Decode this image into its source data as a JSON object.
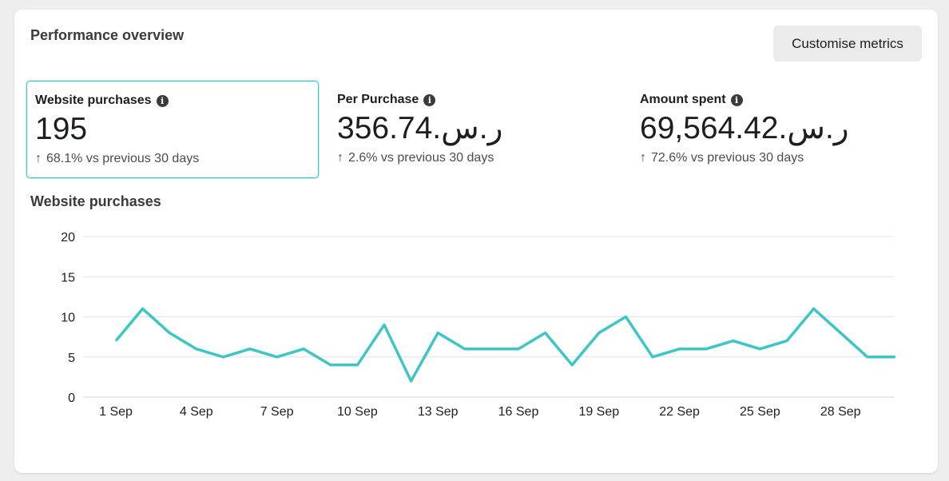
{
  "header": {
    "title": "Performance overview",
    "customise_label": "Customise metrics"
  },
  "metrics": [
    {
      "label": "Website purchases",
      "value": "195",
      "change": "68.1% vs previous 30 days",
      "selected": true
    },
    {
      "label": "Per Purchase",
      "value": "356.74.ر.س",
      "change": "2.6% vs previous 30 days",
      "selected": false
    },
    {
      "label": "Amount spent",
      "value": "69,564.42.ر.س",
      "change": "72.6% vs previous 30 days",
      "selected": false
    }
  ],
  "icons": {
    "info": "info-icon",
    "trend": "arrow-up-icon"
  },
  "colors": {
    "line": "#3ec6c6",
    "selected_border": "#3ec6c6"
  },
  "chart_data": {
    "type": "line",
    "title": "Website purchases",
    "x": [
      "1 Sep",
      "2 Sep",
      "3 Sep",
      "4 Sep",
      "5 Sep",
      "6 Sep",
      "7 Sep",
      "8 Sep",
      "9 Sep",
      "10 Sep",
      "11 Sep",
      "12 Sep",
      "13 Sep",
      "14 Sep",
      "15 Sep",
      "16 Sep",
      "17 Sep",
      "18 Sep",
      "19 Sep",
      "20 Sep",
      "21 Sep",
      "22 Sep",
      "23 Sep",
      "24 Sep",
      "25 Sep",
      "26 Sep",
      "27 Sep",
      "28 Sep",
      "29 Sep",
      "30 Sep"
    ],
    "series": [
      {
        "values": [
          7,
          11,
          8,
          6,
          5,
          6,
          5,
          6,
          4,
          4,
          9,
          2,
          8,
          6,
          6,
          6,
          8,
          4,
          8,
          10,
          5,
          6,
          6,
          7,
          6,
          7,
          11,
          8,
          5,
          5
        ]
      }
    ],
    "x_tick_labels": [
      "1 Sep",
      "4 Sep",
      "7 Sep",
      "10 Sep",
      "13 Sep",
      "16 Sep",
      "19 Sep",
      "22 Sep",
      "25 Sep",
      "28 Sep"
    ],
    "y_ticks": [
      0,
      5,
      10,
      15,
      20
    ],
    "ylim": [
      0,
      20
    ],
    "grid": true,
    "legend": "none"
  }
}
